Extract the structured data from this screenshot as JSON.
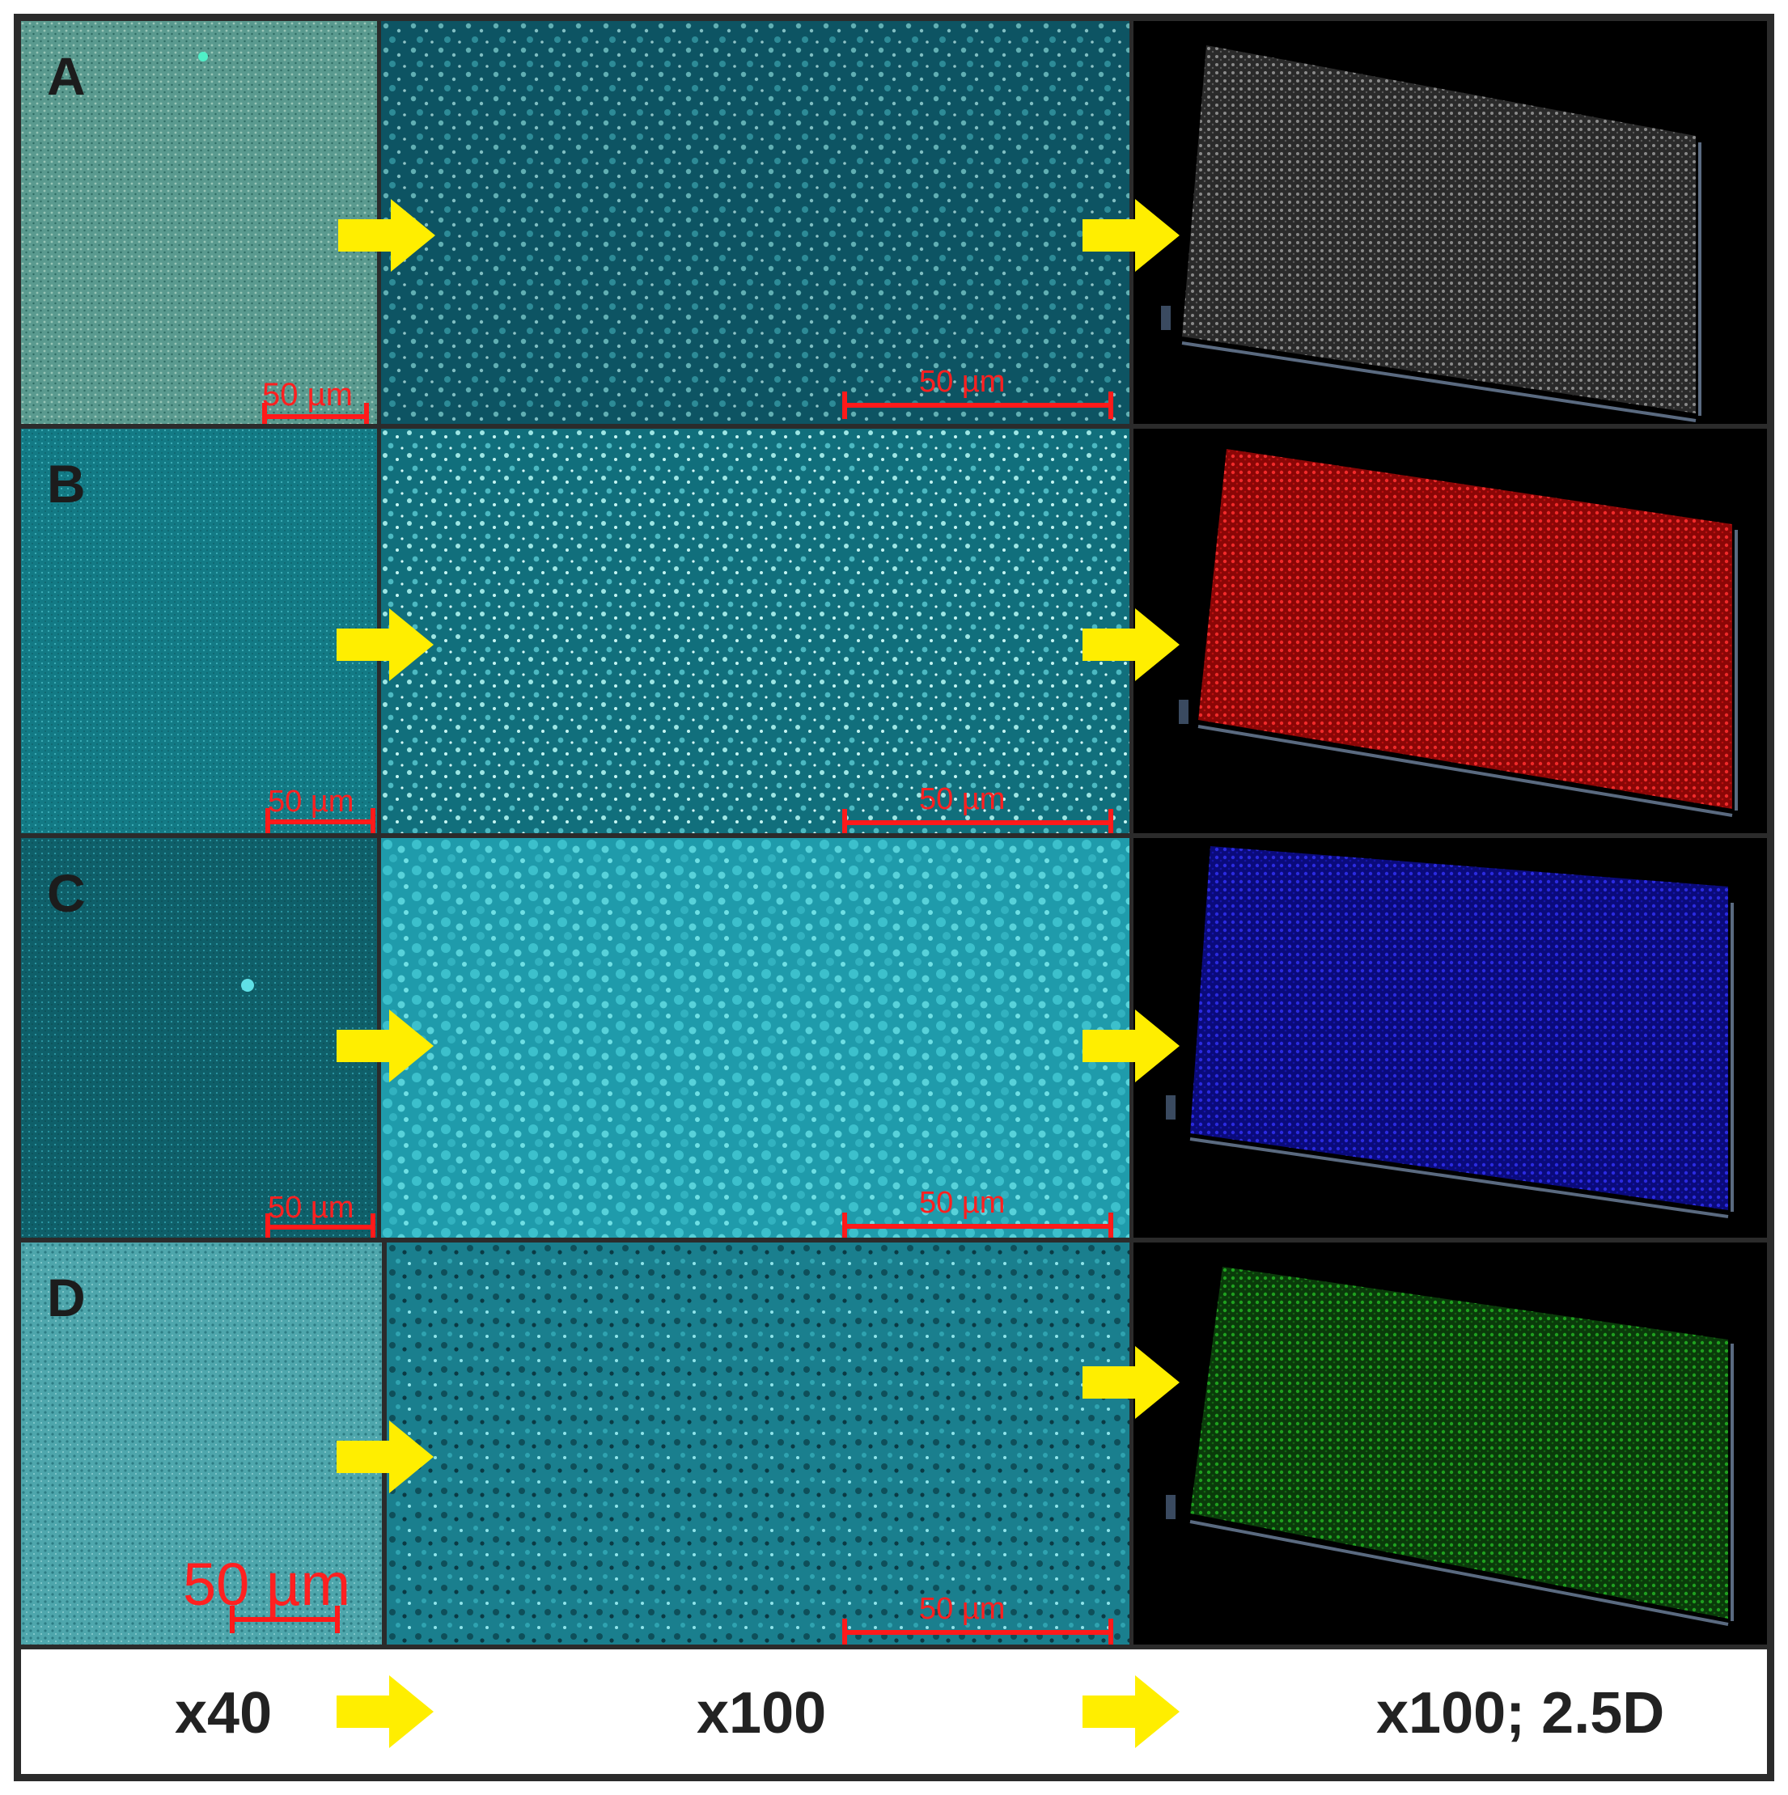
{
  "panels": [
    {
      "letter": "A",
      "scale40": "50 µm",
      "scale100": "50 µm",
      "surface_color": "#8a8a8a",
      "surface_name": "gray-surface"
    },
    {
      "letter": "B",
      "scale40": "50 µm",
      "scale100": "50 µm",
      "surface_color": "#d01010",
      "surface_name": "red-surface"
    },
    {
      "letter": "C",
      "scale40": "50 µm",
      "scale100": "50 µm",
      "surface_color": "#1f1fd0",
      "surface_name": "blue-surface"
    },
    {
      "letter": "D",
      "scale40": "50 µm",
      "scale100": "50 µm",
      "surface_color": "#1a9a1a",
      "surface_name": "green-surface"
    }
  ],
  "legend": {
    "x40": "x40",
    "x100": "x100",
    "x100_25d": "x100; 2.5D"
  },
  "colors": {
    "arrow": "#ffee00",
    "scale": "#ff1a1a",
    "a40": "#4f8f86",
    "cyan_bg": "#15707e",
    "cyan_bright": "#2aa9b8",
    "d40": "#4aa0a6"
  }
}
